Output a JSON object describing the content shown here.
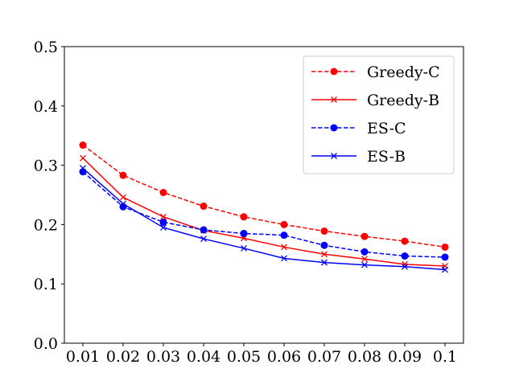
{
  "chart_data": {
    "type": "line",
    "title": "",
    "xlabel": "",
    "ylabel": "",
    "x": [
      0.01,
      0.02,
      0.03,
      0.04,
      0.05,
      0.06,
      0.07,
      0.08,
      0.09,
      0.1
    ],
    "x_tick_labels": [
      "0.01",
      "0.02",
      "0.03",
      "0.04",
      "0.05",
      "0.06",
      "0.07",
      "0.08",
      "0.09",
      "0.1"
    ],
    "ylim": [
      0.0,
      0.5
    ],
    "y_ticks": [
      0.0,
      0.1,
      0.2,
      0.3,
      0.4,
      0.5
    ],
    "y_tick_labels": [
      "0.0",
      "0.1",
      "0.2",
      "0.3",
      "0.4",
      "0.5"
    ],
    "grid": false,
    "legend_position": "top-right",
    "series": [
      {
        "name": "Greedy-C",
        "color": "#ff0000",
        "line_style": "dashed",
        "marker": "circle",
        "values": [
          0.334,
          0.283,
          0.254,
          0.231,
          0.213,
          0.2,
          0.189,
          0.18,
          0.172,
          0.162
        ]
      },
      {
        "name": "Greedy-B",
        "color": "#ff0000",
        "line_style": "solid",
        "marker": "cross",
        "values": [
          0.312,
          0.246,
          0.213,
          0.19,
          0.177,
          0.162,
          0.15,
          0.142,
          0.133,
          0.13
        ]
      },
      {
        "name": "ES-C",
        "color": "#0000ff",
        "line_style": "dashed",
        "marker": "circle",
        "values": [
          0.289,
          0.23,
          0.204,
          0.191,
          0.185,
          0.182,
          0.165,
          0.154,
          0.147,
          0.145
        ]
      },
      {
        "name": "ES-B",
        "color": "#0000ff",
        "line_style": "solid",
        "marker": "cross",
        "values": [
          0.295,
          0.235,
          0.195,
          0.176,
          0.16,
          0.143,
          0.136,
          0.132,
          0.129,
          0.124
        ]
      }
    ]
  }
}
